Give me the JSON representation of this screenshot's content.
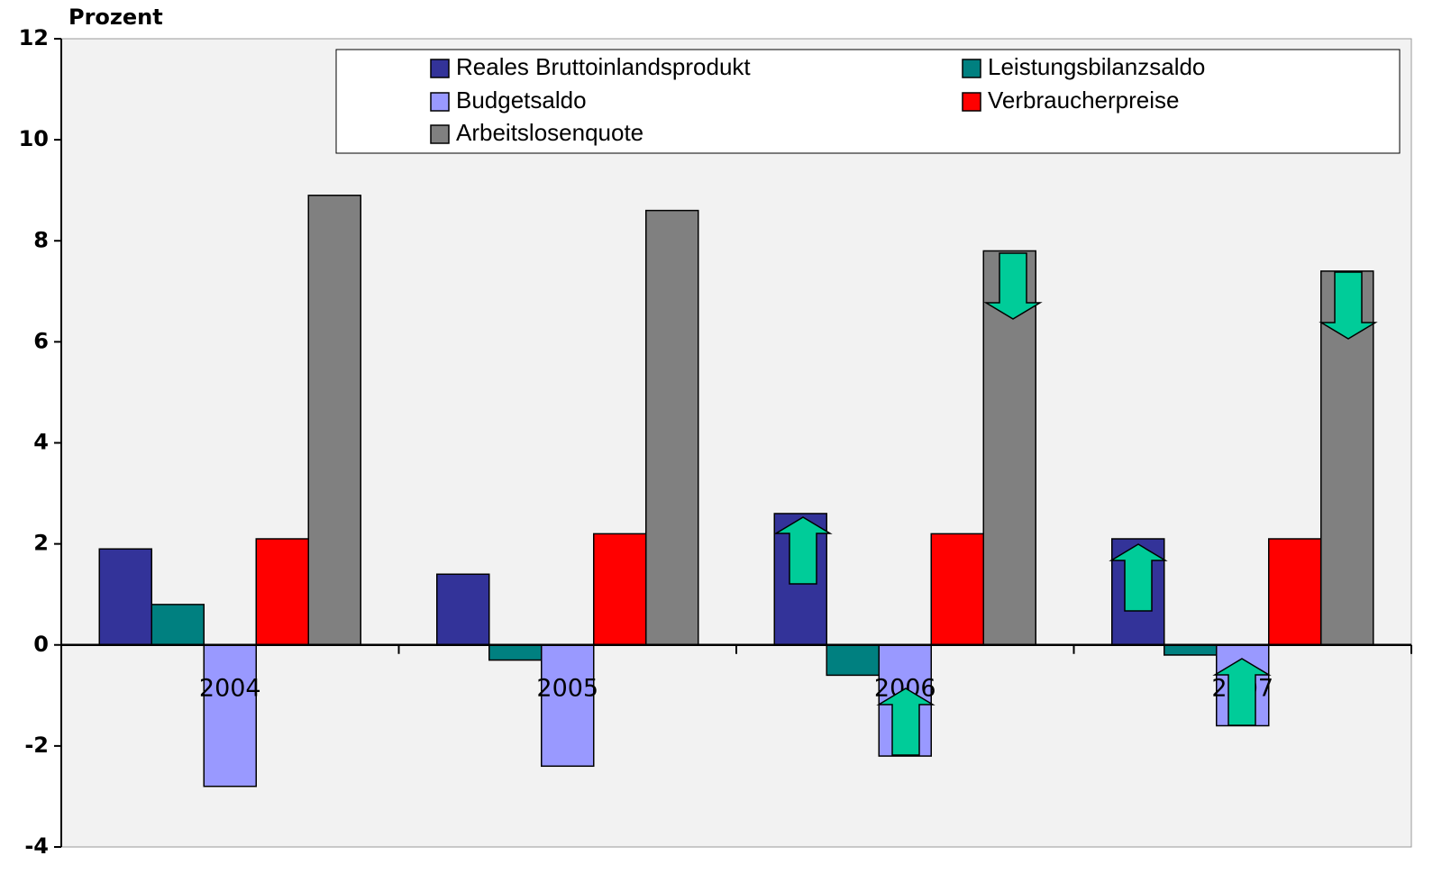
{
  "chart_data": {
    "type": "bar",
    "ylabel": "Prozent",
    "categories": [
      "2004",
      "2005",
      "2006",
      "2007"
    ],
    "series": [
      {
        "name": "Reales Bruttoinlandsprodukt",
        "color": "#333399",
        "values": [
          1.9,
          1.4,
          2.6,
          2.1
        ]
      },
      {
        "name": "Leistungsbilanzsaldo",
        "color": "#008080",
        "values": [
          0.8,
          -0.3,
          -0.6,
          -0.2
        ]
      },
      {
        "name": "Budgetsaldo",
        "color": "#9999ff",
        "values": [
          -2.8,
          -2.4,
          -2.2,
          -1.6
        ]
      },
      {
        "name": "Verbraucherpreise",
        "color": "#ff0000",
        "values": [
          2.1,
          2.2,
          2.2,
          2.1
        ]
      },
      {
        "name": "Arbeitslosenquote",
        "color": "#808080",
        "values": [
          8.9,
          8.6,
          7.8,
          7.4
        ]
      }
    ],
    "ylim": [
      -4,
      12
    ],
    "yticks": [
      -4,
      -2,
      0,
      2,
      4,
      6,
      8,
      10,
      12
    ]
  }
}
